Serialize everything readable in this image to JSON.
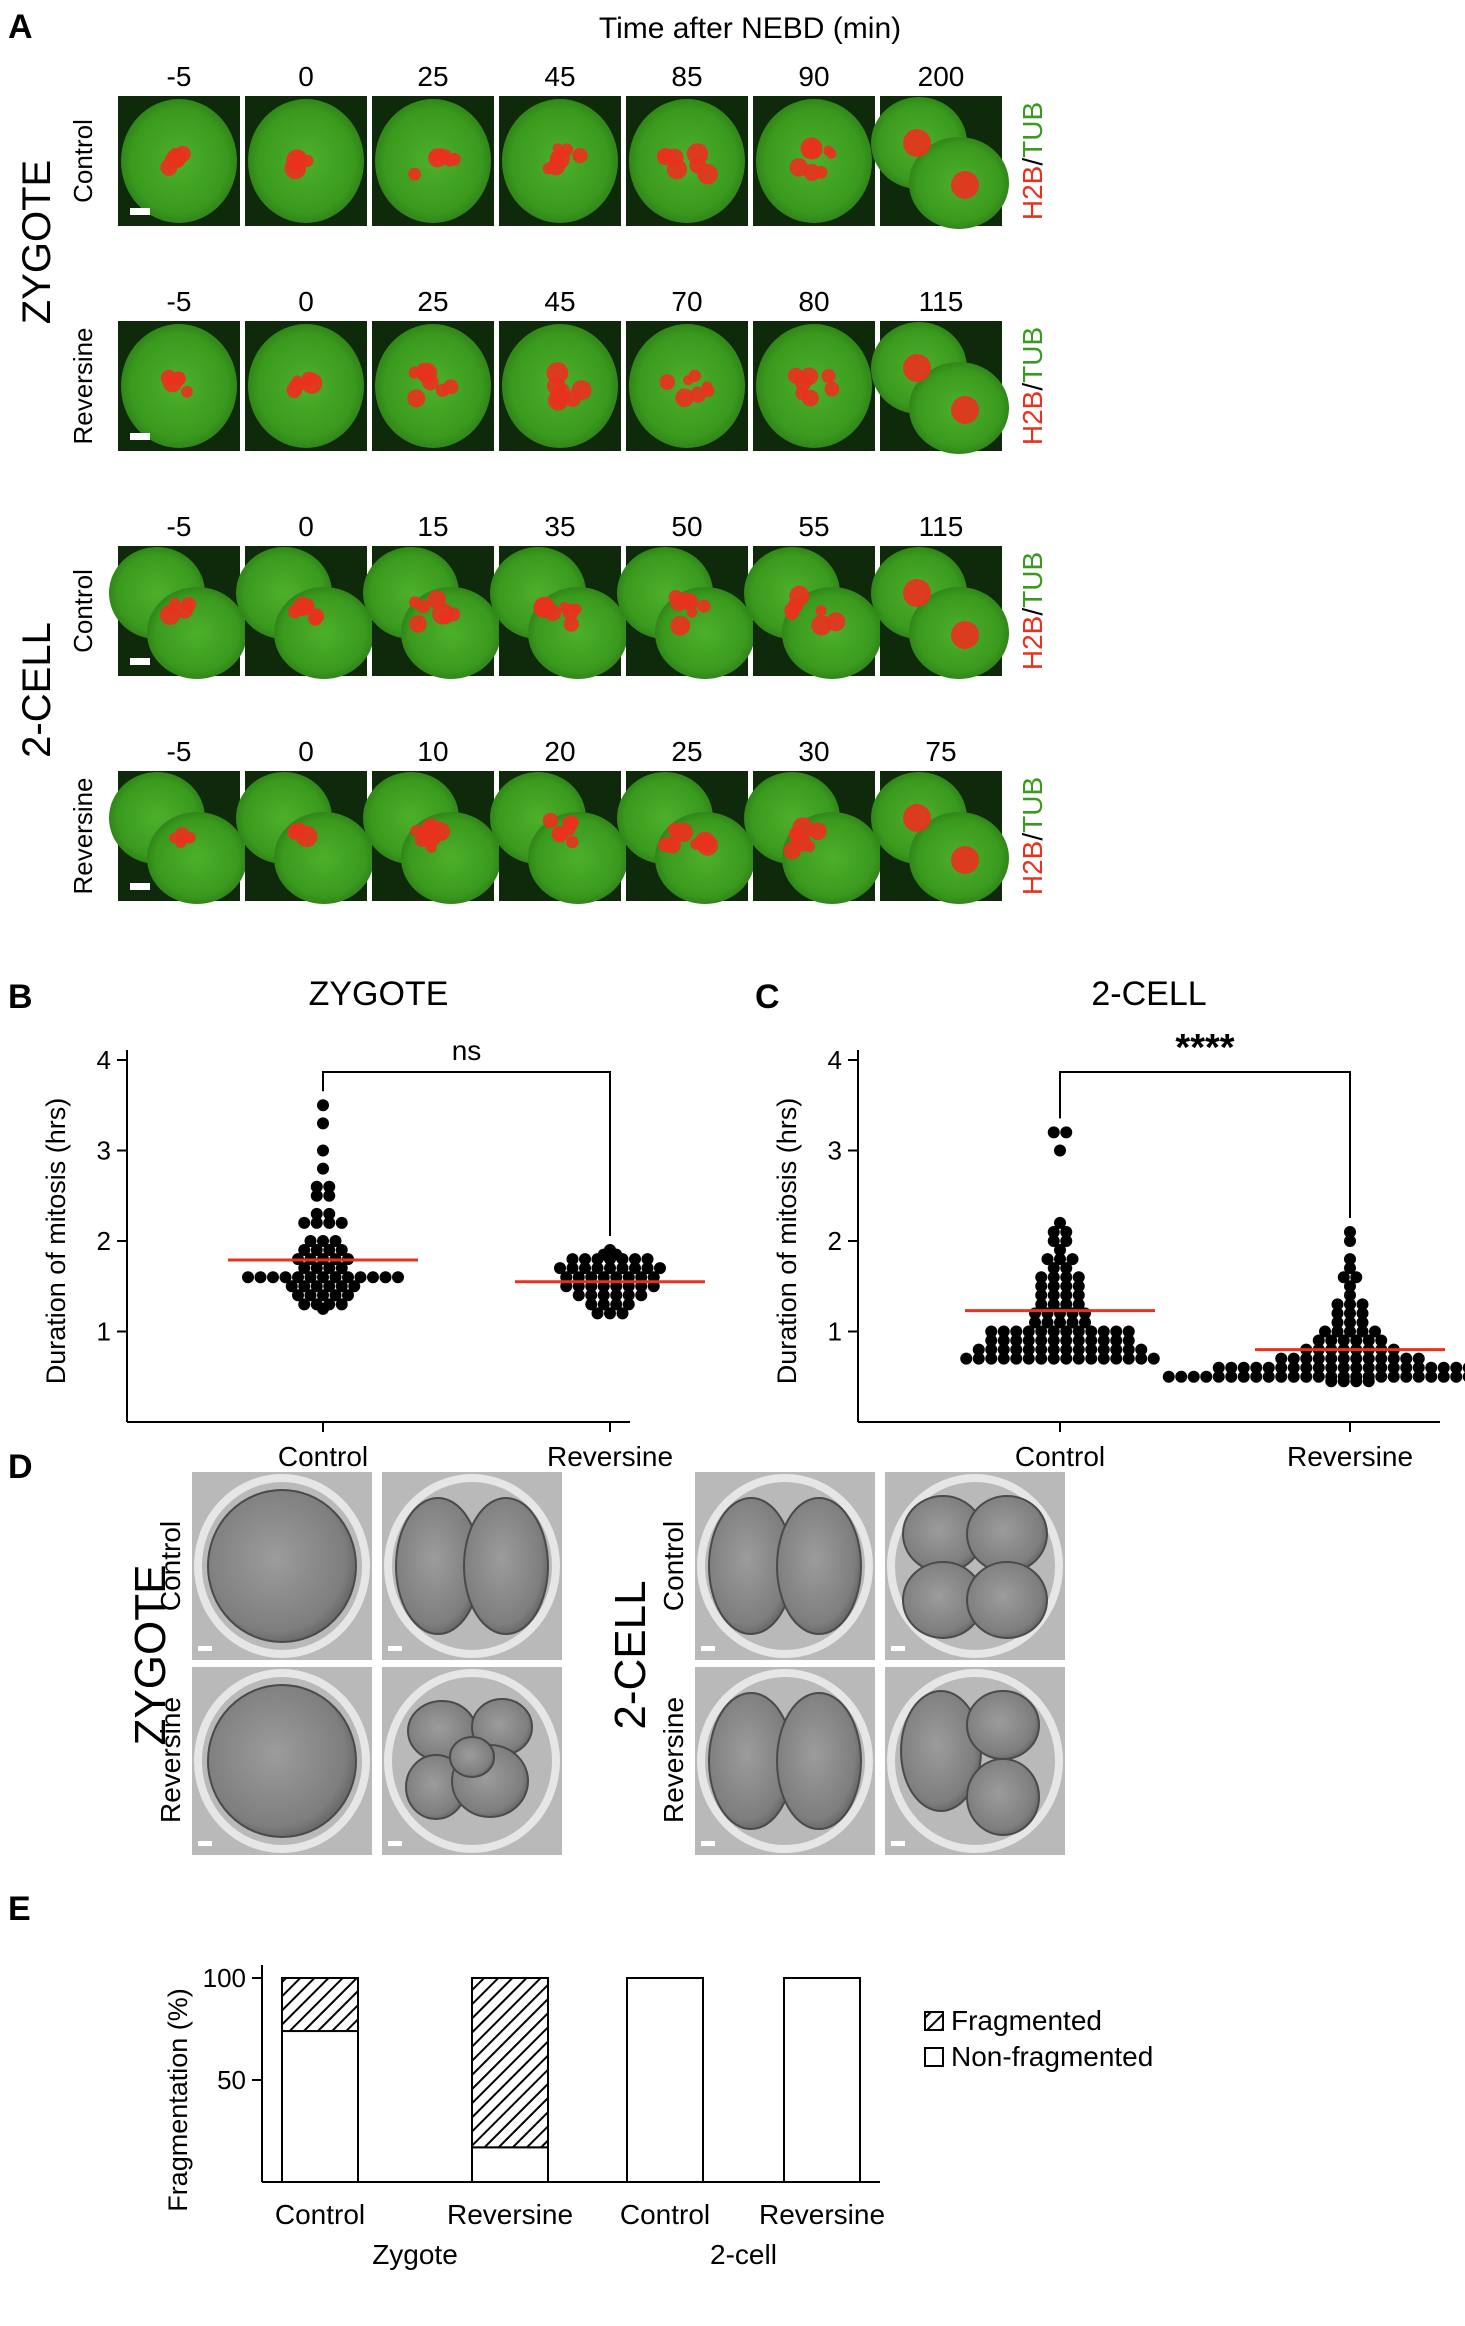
{
  "panel_letters": {
    "a": "A",
    "b": "B",
    "c": "C",
    "d": "D",
    "e": "E"
  },
  "panel_a": {
    "time_title": "Time after NEBD (min)",
    "stage_labels": [
      "ZYGOTE",
      "2-CELL"
    ],
    "channel_h2b": "H2B",
    "channel_sep": "/",
    "channel_tub": "TUB",
    "rows": [
      {
        "stage": "zygote",
        "condition": "Control",
        "times": [
          "-5",
          "0",
          "25",
          "45",
          "85",
          "90",
          "200"
        ]
      },
      {
        "stage": "zygote",
        "condition": "Reversine",
        "times": [
          "-5",
          "0",
          "25",
          "45",
          "70",
          "80",
          "115"
        ]
      },
      {
        "stage": "2cell",
        "condition": "Control",
        "times": [
          "-5",
          "0",
          "15",
          "35",
          "50",
          "55",
          "115"
        ]
      },
      {
        "stage": "2cell",
        "condition": "Reversine",
        "times": [
          "-5",
          "0",
          "10",
          "20",
          "25",
          "30",
          "75"
        ]
      }
    ],
    "colors": {
      "green": "#3a9a1e",
      "red": "#e8321e",
      "bg": "#0f2a0a"
    }
  },
  "panel_d": {
    "left_stage": "ZYGOTE",
    "right_stage": "2-CELL",
    "row_labels": [
      "Control",
      "Reversine"
    ]
  },
  "chart_data": [
    {
      "panel": "B",
      "type": "scatter",
      "title": "ZYGOTE",
      "ylabel": "Duration of mitosis (hrs)",
      "categories": [
        "Control",
        "Reversine"
      ],
      "y_ticks": [
        "1",
        "2",
        "3",
        "4"
      ],
      "ylim": [
        0.0,
        4.0
      ],
      "significance": "ns",
      "series": [
        {
          "category": "Control",
          "mean": 1.79,
          "values": [
            3.5,
            3.3,
            3.0,
            2.8,
            2.6,
            2.6,
            2.5,
            2.5,
            2.3,
            2.3,
            2.2,
            2.2,
            2.2,
            2.2,
            2.0,
            2.0,
            2.0,
            1.9,
            1.9,
            1.9,
            1.9,
            1.8,
            1.8,
            1.8,
            1.8,
            1.8,
            1.7,
            1.7,
            1.7,
            1.7,
            1.6,
            1.6,
            1.6,
            1.6,
            1.6,
            1.6,
            1.6,
            1.6,
            1.6,
            1.6,
            1.6,
            1.6,
            1.6,
            1.5,
            1.5,
            1.5,
            1.5,
            1.5,
            1.5,
            1.4,
            1.4,
            1.4,
            1.4,
            1.4,
            1.3,
            1.3,
            1.3,
            1.3,
            1.25
          ]
        },
        {
          "category": "Reversine",
          "mean": 1.55,
          "values": [
            1.9,
            1.85,
            1.85,
            1.8,
            1.8,
            1.8,
            1.8,
            1.8,
            1.8,
            1.8,
            1.7,
            1.7,
            1.7,
            1.7,
            1.7,
            1.7,
            1.7,
            1.7,
            1.7,
            1.6,
            1.6,
            1.6,
            1.6,
            1.6,
            1.6,
            1.6,
            1.6,
            1.5,
            1.5,
            1.5,
            1.5,
            1.5,
            1.5,
            1.5,
            1.5,
            1.4,
            1.4,
            1.4,
            1.4,
            1.4,
            1.4,
            1.3,
            1.3,
            1.3,
            1.3,
            1.2,
            1.2,
            1.2
          ]
        }
      ]
    },
    {
      "panel": "C",
      "type": "scatter",
      "title": "2-CELL",
      "ylabel": "Duration of mitosis (hrs)",
      "categories": [
        "Control",
        "Reversine"
      ],
      "y_ticks": [
        "1",
        "2",
        "3",
        "4"
      ],
      "ylim": [
        0.0,
        4.0
      ],
      "significance": "****",
      "series": [
        {
          "category": "Control",
          "mean": 1.23,
          "values": [
            3.2,
            3.2,
            3.0,
            2.2,
            2.1,
            2.1,
            2.0,
            2.0,
            1.9,
            1.8,
            1.8,
            1.8,
            1.7,
            1.7,
            1.6,
            1.6,
            1.6,
            1.6,
            1.5,
            1.5,
            1.5,
            1.5,
            1.4,
            1.4,
            1.4,
            1.4,
            1.3,
            1.3,
            1.3,
            1.3,
            1.2,
            1.2,
            1.2,
            1.2,
            1.2,
            1.1,
            1.1,
            1.1,
            1.1,
            1.1,
            1.0,
            1.0,
            1.0,
            1.0,
            1.0,
            1.0,
            1.0,
            1.0,
            1.0,
            1.0,
            1.0,
            1.0,
            0.9,
            0.9,
            0.9,
            0.9,
            0.9,
            0.9,
            0.9,
            0.9,
            0.9,
            0.9,
            0.9,
            0.9,
            0.8,
            0.8,
            0.8,
            0.8,
            0.8,
            0.8,
            0.8,
            0.8,
            0.8,
            0.8,
            0.8,
            0.8,
            0.8,
            0.8,
            0.7,
            0.7,
            0.7,
            0.7,
            0.7,
            0.7,
            0.7,
            0.7,
            0.7,
            0.7,
            0.7,
            0.7,
            0.7,
            0.7,
            0.7,
            0.7
          ]
        },
        {
          "category": "Reversine",
          "mean": 0.8,
          "values": [
            2.1,
            2.0,
            1.8,
            1.7,
            1.6,
            1.6,
            1.5,
            1.4,
            1.3,
            1.3,
            1.3,
            1.2,
            1.2,
            1.2,
            1.1,
            1.1,
            1.1,
            1.0,
            1.0,
            1.0,
            1.0,
            1.0,
            0.9,
            0.9,
            0.9,
            0.9,
            0.9,
            0.9,
            0.8,
            0.8,
            0.8,
            0.8,
            0.8,
            0.8,
            0.8,
            0.8,
            0.7,
            0.7,
            0.7,
            0.7,
            0.7,
            0.7,
            0.7,
            0.7,
            0.7,
            0.7,
            0.7,
            0.7,
            0.6,
            0.6,
            0.6,
            0.6,
            0.6,
            0.6,
            0.6,
            0.6,
            0.6,
            0.6,
            0.6,
            0.6,
            0.6,
            0.6,
            0.6,
            0.6,
            0.6,
            0.6,
            0.6,
            0.6,
            0.6,
            0.6,
            0.5,
            0.5,
            0.5,
            0.5,
            0.5,
            0.5,
            0.5,
            0.5,
            0.5,
            0.5,
            0.5,
            0.5,
            0.5,
            0.5,
            0.5,
            0.5,
            0.5,
            0.5,
            0.5,
            0.5,
            0.5,
            0.5,
            0.5,
            0.5,
            0.5,
            0.5,
            0.5,
            0.5,
            0.5,
            0.5,
            0.45,
            0.45,
            0.45,
            0.45
          ]
        }
      ]
    },
    {
      "panel": "E",
      "type": "bar",
      "stacked": true,
      "ylabel": "Fragmentation (%)",
      "y_ticks": [
        "50",
        "100"
      ],
      "ylim": [
        0,
        100
      ],
      "categories": [
        "Control",
        "Reversine",
        "Control",
        "Reversine"
      ],
      "groups": [
        {
          "label": "Zygote",
          "categories": [
            0,
            1
          ]
        },
        {
          "label": "2-cell",
          "categories": [
            2,
            3
          ]
        }
      ],
      "series": [
        {
          "name": "Non-fragmented",
          "values": [
            74,
            17,
            100,
            100
          ]
        },
        {
          "name": "Fragmented",
          "values": [
            26,
            83,
            0,
            0
          ]
        }
      ],
      "legend": [
        "Fragmented",
        "Non-fragmented"
      ],
      "legend_position": "right"
    }
  ]
}
